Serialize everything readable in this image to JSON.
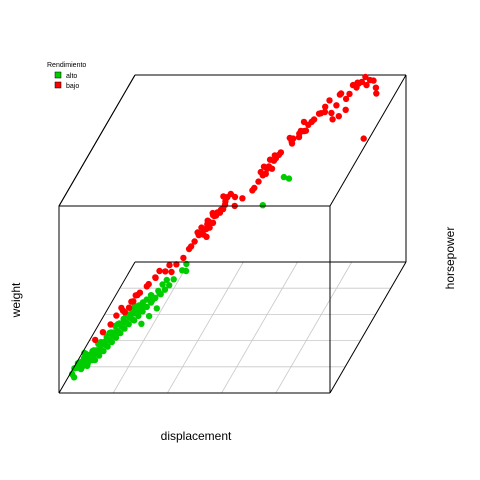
{
  "chart_data": {
    "type": "scatter",
    "projection": "3d",
    "title": "",
    "xlabel": "displacement",
    "ylabel": "weight",
    "zlabel": "horsepower",
    "xlim": [
      0,
      1
    ],
    "ylim": [
      0,
      1
    ],
    "zlim": [
      0,
      1
    ],
    "grid": true,
    "grid_plane": "floor",
    "legend_position": "top-left",
    "legend_title": "Rendimiento",
    "series": [
      {
        "name": "alto",
        "color": "#00cd00",
        "points": [
          [
            0.05,
            0.05,
            0.1
          ],
          [
            0.06,
            0.04,
            0.12
          ],
          [
            0.07,
            0.06,
            0.1
          ],
          [
            0.08,
            0.05,
            0.13
          ],
          [
            0.06,
            0.08,
            0.11
          ],
          [
            0.09,
            0.07,
            0.12
          ],
          [
            0.07,
            0.1,
            0.14
          ],
          [
            0.1,
            0.09,
            0.13
          ],
          [
            0.08,
            0.12,
            0.12
          ],
          [
            0.11,
            0.1,
            0.15
          ],
          [
            0.09,
            0.14,
            0.13
          ],
          [
            0.12,
            0.12,
            0.14
          ],
          [
            0.1,
            0.16,
            0.15
          ],
          [
            0.13,
            0.14,
            0.16
          ],
          [
            0.11,
            0.18,
            0.14
          ],
          [
            0.14,
            0.16,
            0.17
          ],
          [
            0.12,
            0.2,
            0.16
          ],
          [
            0.15,
            0.18,
            0.18
          ],
          [
            0.13,
            0.22,
            0.17
          ],
          [
            0.16,
            0.2,
            0.18
          ],
          [
            0.14,
            0.24,
            0.19
          ],
          [
            0.17,
            0.22,
            0.2
          ],
          [
            0.15,
            0.26,
            0.19
          ],
          [
            0.18,
            0.24,
            0.21
          ],
          [
            0.16,
            0.28,
            0.2
          ],
          [
            0.19,
            0.26,
            0.22
          ],
          [
            0.17,
            0.3,
            0.21
          ],
          [
            0.2,
            0.28,
            0.23
          ],
          [
            0.18,
            0.32,
            0.22
          ],
          [
            0.21,
            0.3,
            0.24
          ],
          [
            0.05,
            0.08,
            0.08
          ],
          [
            0.06,
            0.1,
            0.09
          ],
          [
            0.04,
            0.06,
            0.09
          ],
          [
            0.07,
            0.12,
            0.1
          ],
          [
            0.08,
            0.09,
            0.09
          ],
          [
            0.09,
            0.11,
            0.11
          ],
          [
            0.1,
            0.13,
            0.12
          ],
          [
            0.11,
            0.15,
            0.13
          ],
          [
            0.12,
            0.17,
            0.14
          ],
          [
            0.13,
            0.19,
            0.15
          ],
          [
            0.14,
            0.21,
            0.16
          ],
          [
            0.15,
            0.23,
            0.17
          ],
          [
            0.16,
            0.25,
            0.18
          ],
          [
            0.17,
            0.27,
            0.19
          ],
          [
            0.18,
            0.29,
            0.2
          ],
          [
            0.19,
            0.31,
            0.21
          ],
          [
            0.2,
            0.33,
            0.22
          ],
          [
            0.21,
            0.35,
            0.23
          ],
          [
            0.22,
            0.37,
            0.24
          ],
          [
            0.23,
            0.39,
            0.25
          ],
          [
            0.06,
            0.06,
            0.12
          ],
          [
            0.07,
            0.08,
            0.13
          ],
          [
            0.08,
            0.1,
            0.11
          ],
          [
            0.09,
            0.12,
            0.14
          ],
          [
            0.1,
            0.14,
            0.13
          ],
          [
            0.11,
            0.16,
            0.16
          ],
          [
            0.12,
            0.18,
            0.15
          ],
          [
            0.13,
            0.2,
            0.18
          ],
          [
            0.14,
            0.22,
            0.17
          ],
          [
            0.15,
            0.24,
            0.2
          ],
          [
            0.16,
            0.26,
            0.19
          ],
          [
            0.17,
            0.28,
            0.22
          ],
          [
            0.18,
            0.3,
            0.21
          ],
          [
            0.19,
            0.32,
            0.24
          ],
          [
            0.2,
            0.34,
            0.23
          ],
          [
            0.22,
            0.32,
            0.26
          ],
          [
            0.24,
            0.36,
            0.27
          ],
          [
            0.26,
            0.38,
            0.28
          ],
          [
            0.25,
            0.34,
            0.26
          ],
          [
            0.27,
            0.4,
            0.3
          ],
          [
            0.23,
            0.3,
            0.25
          ],
          [
            0.21,
            0.28,
            0.24
          ],
          [
            0.07,
            0.04,
            0.1
          ],
          [
            0.05,
            0.07,
            0.11
          ],
          [
            0.08,
            0.07,
            0.1
          ],
          [
            0.1,
            0.08,
            0.12
          ],
          [
            0.06,
            0.12,
            0.13
          ],
          [
            0.09,
            0.05,
            0.11
          ],
          [
            0.12,
            0.1,
            0.13
          ],
          [
            0.11,
            0.08,
            0.12
          ],
          [
            0.13,
            0.12,
            0.14
          ],
          [
            0.14,
            0.14,
            0.15
          ],
          [
            0.15,
            0.16,
            0.16
          ],
          [
            0.16,
            0.18,
            0.17
          ],
          [
            0.17,
            0.2,
            0.18
          ],
          [
            0.18,
            0.22,
            0.19
          ],
          [
            0.19,
            0.24,
            0.2
          ],
          [
            0.2,
            0.26,
            0.21
          ],
          [
            0.21,
            0.24,
            0.22
          ],
          [
            0.22,
            0.26,
            0.23
          ],
          [
            0.23,
            0.28,
            0.24
          ],
          [
            0.24,
            0.3,
            0.25
          ],
          [
            0.25,
            0.32,
            0.26
          ],
          [
            0.26,
            0.34,
            0.27
          ],
          [
            0.27,
            0.36,
            0.28
          ],
          [
            0.28,
            0.34,
            0.29
          ],
          [
            0.29,
            0.36,
            0.3
          ],
          [
            0.3,
            0.38,
            0.31
          ],
          [
            0.04,
            0.03,
            0.08
          ],
          [
            0.05,
            0.02,
            0.07
          ],
          [
            0.3,
            0.44,
            0.3
          ],
          [
            0.32,
            0.48,
            0.32
          ],
          [
            0.34,
            0.46,
            0.33
          ],
          [
            0.28,
            0.42,
            0.31
          ],
          [
            0.55,
            0.72,
            0.5
          ],
          [
            0.6,
            0.82,
            0.58
          ],
          [
            0.63,
            0.78,
            0.6
          ],
          [
            0.33,
            0.5,
            0.34
          ],
          [
            0.22,
            0.3,
            0.16
          ],
          [
            0.24,
            0.33,
            0.18
          ],
          [
            0.26,
            0.36,
            0.2
          ]
        ]
      },
      {
        "name": "bajo",
        "color": "#ff0000",
        "points": [
          [
            0.1,
            0.12,
            0.2
          ],
          [
            0.12,
            0.15,
            0.22
          ],
          [
            0.14,
            0.18,
            0.24
          ],
          [
            0.15,
            0.22,
            0.26
          ],
          [
            0.16,
            0.25,
            0.28
          ],
          [
            0.18,
            0.2,
            0.3
          ],
          [
            0.2,
            0.24,
            0.32
          ],
          [
            0.22,
            0.28,
            0.34
          ],
          [
            0.24,
            0.3,
            0.36
          ],
          [
            0.26,
            0.34,
            0.38
          ],
          [
            0.2,
            0.32,
            0.3
          ],
          [
            0.18,
            0.28,
            0.26
          ],
          [
            0.23,
            0.36,
            0.33
          ],
          [
            0.25,
            0.38,
            0.35
          ],
          [
            0.21,
            0.26,
            0.34
          ],
          [
            0.19,
            0.3,
            0.28
          ],
          [
            0.17,
            0.26,
            0.25
          ],
          [
            0.28,
            0.4,
            0.37
          ],
          [
            0.27,
            0.36,
            0.4
          ],
          [
            0.29,
            0.42,
            0.39
          ],
          [
            0.36,
            0.5,
            0.46
          ],
          [
            0.37,
            0.52,
            0.48
          ],
          [
            0.38,
            0.54,
            0.5
          ],
          [
            0.39,
            0.56,
            0.51
          ],
          [
            0.4,
            0.55,
            0.53
          ],
          [
            0.41,
            0.58,
            0.54
          ],
          [
            0.42,
            0.57,
            0.55
          ],
          [
            0.43,
            0.6,
            0.56
          ],
          [
            0.38,
            0.58,
            0.47
          ],
          [
            0.4,
            0.6,
            0.49
          ],
          [
            0.41,
            0.52,
            0.52
          ],
          [
            0.42,
            0.62,
            0.53
          ],
          [
            0.44,
            0.59,
            0.57
          ],
          [
            0.39,
            0.51,
            0.49
          ],
          [
            0.37,
            0.56,
            0.46
          ],
          [
            0.43,
            0.55,
            0.58
          ],
          [
            0.44,
            0.62,
            0.59
          ],
          [
            0.45,
            0.58,
            0.6
          ],
          [
            0.4,
            0.53,
            0.55
          ],
          [
            0.41,
            0.56,
            0.57
          ],
          [
            0.42,
            0.53,
            0.58
          ],
          [
            0.38,
            0.52,
            0.52
          ],
          [
            0.36,
            0.54,
            0.48
          ],
          [
            0.45,
            0.61,
            0.62
          ],
          [
            0.43,
            0.63,
            0.61
          ],
          [
            0.46,
            0.62,
            0.63
          ],
          [
            0.39,
            0.55,
            0.45
          ],
          [
            0.47,
            0.64,
            0.6
          ],
          [
            0.35,
            0.49,
            0.44
          ],
          [
            0.34,
            0.5,
            0.42
          ],
          [
            0.54,
            0.7,
            0.64
          ],
          [
            0.55,
            0.72,
            0.66
          ],
          [
            0.56,
            0.74,
            0.68
          ],
          [
            0.57,
            0.73,
            0.7
          ],
          [
            0.58,
            0.76,
            0.71
          ],
          [
            0.59,
            0.75,
            0.73
          ],
          [
            0.6,
            0.78,
            0.74
          ],
          [
            0.56,
            0.7,
            0.72
          ],
          [
            0.57,
            0.77,
            0.66
          ],
          [
            0.58,
            0.71,
            0.75
          ],
          [
            0.53,
            0.68,
            0.62
          ],
          [
            0.55,
            0.76,
            0.64
          ],
          [
            0.59,
            0.79,
            0.72
          ],
          [
            0.54,
            0.73,
            0.67
          ],
          [
            0.52,
            0.69,
            0.6
          ],
          [
            0.63,
            0.82,
            0.76
          ],
          [
            0.64,
            0.8,
            0.8
          ],
          [
            0.65,
            0.84,
            0.78
          ],
          [
            0.66,
            0.83,
            0.82
          ],
          [
            0.67,
            0.86,
            0.8
          ],
          [
            0.62,
            0.85,
            0.75
          ],
          [
            0.64,
            0.88,
            0.77
          ],
          [
            0.66,
            0.87,
            0.84
          ],
          [
            0.68,
            0.9,
            0.82
          ],
          [
            0.63,
            0.79,
            0.81
          ],
          [
            0.72,
            0.88,
            0.88
          ],
          [
            0.73,
            0.9,
            0.9
          ],
          [
            0.74,
            0.92,
            0.92
          ],
          [
            0.75,
            0.91,
            0.86
          ],
          [
            0.76,
            0.94,
            0.88
          ],
          [
            0.77,
            0.95,
            0.93
          ],
          [
            0.78,
            0.93,
            0.95
          ],
          [
            0.79,
            0.96,
            0.9
          ],
          [
            0.8,
            0.97,
            0.92
          ],
          [
            0.81,
            0.98,
            0.96
          ],
          [
            0.82,
            0.99,
            0.94
          ],
          [
            0.83,
            0.97,
            0.98
          ],
          [
            0.84,
            0.99,
            0.97
          ],
          [
            0.85,
            1.0,
            0.99
          ],
          [
            0.78,
            0.9,
            0.85
          ],
          [
            0.76,
            0.89,
            0.84
          ],
          [
            0.8,
            0.92,
            0.87
          ],
          [
            0.7,
            0.86,
            0.86
          ],
          [
            0.71,
            0.89,
            0.87
          ],
          [
            0.86,
            0.98,
            0.96
          ],
          [
            0.87,
            0.99,
            0.98
          ],
          [
            0.88,
            1.0,
            0.97
          ],
          [
            0.84,
            0.95,
            0.99
          ],
          [
            0.9,
            0.96,
            0.96
          ],
          [
            0.91,
            0.93,
            0.95
          ],
          [
            0.68,
            0.8,
            0.84
          ],
          [
            0.69,
            0.82,
            0.86
          ],
          [
            0.74,
            0.86,
            0.9
          ],
          [
            0.9,
            0.8,
            0.8
          ],
          [
            0.6,
            0.7,
            0.78
          ],
          [
            0.5,
            0.63,
            0.6
          ],
          [
            0.48,
            0.6,
            0.58
          ],
          [
            0.33,
            0.46,
            0.4
          ],
          [
            0.31,
            0.44,
            0.38
          ],
          [
            0.3,
            0.41,
            0.36
          ]
        ]
      }
    ]
  }
}
